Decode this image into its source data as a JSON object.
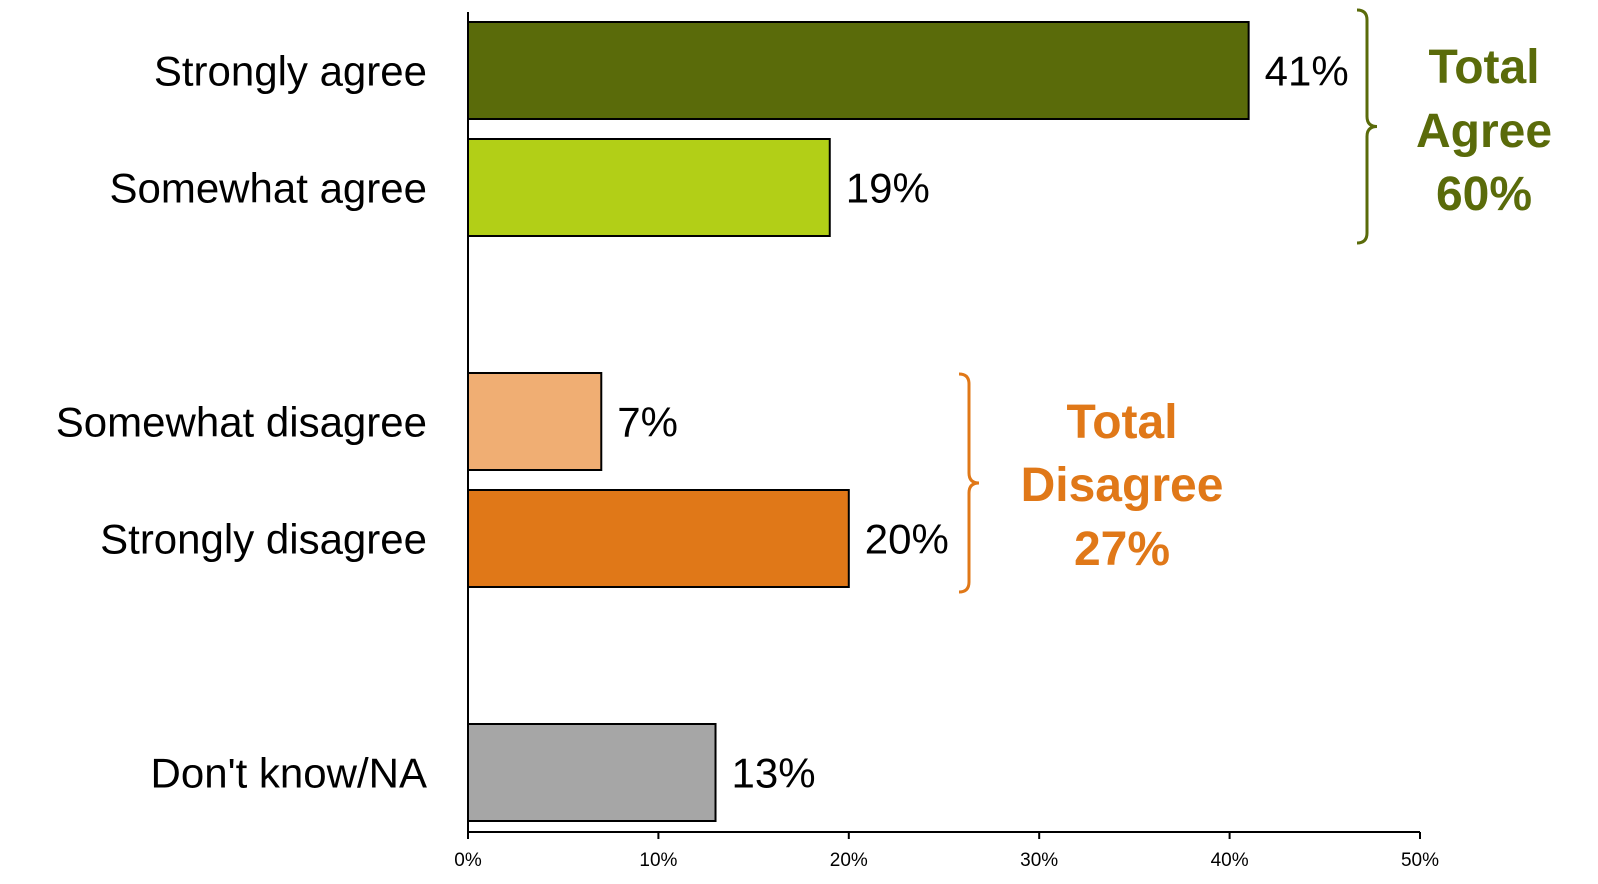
{
  "chart_data": {
    "type": "bar",
    "orientation": "horizontal",
    "categories": [
      "Strongly agree",
      "Somewhat agree",
      "Somewhat disagree",
      "Strongly disagree",
      "Don't know/NA"
    ],
    "values": [
      41,
      19,
      7,
      20,
      13
    ],
    "value_labels": [
      "41%",
      "19%",
      "7%",
      "20%",
      "13%"
    ],
    "colors": [
      "#5a6b0a",
      "#b2cf17",
      "#f0ae73",
      "#e07818",
      "#a6a6a6"
    ],
    "xlim": [
      0,
      50
    ],
    "xticks": [
      0,
      10,
      20,
      30,
      40,
      50
    ],
    "xtick_labels": [
      "0%",
      "10%",
      "20%",
      "30%",
      "40%",
      "50%"
    ],
    "grid": false,
    "groups": [
      {
        "lines": [
          "Total",
          "Agree",
          "60%"
        ],
        "color": "#5a6b0a",
        "members": [
          0,
          1
        ]
      },
      {
        "lines": [
          "Total",
          "Disagree",
          "27%"
        ],
        "color": "#e07818",
        "members": [
          2,
          3
        ]
      }
    ]
  }
}
